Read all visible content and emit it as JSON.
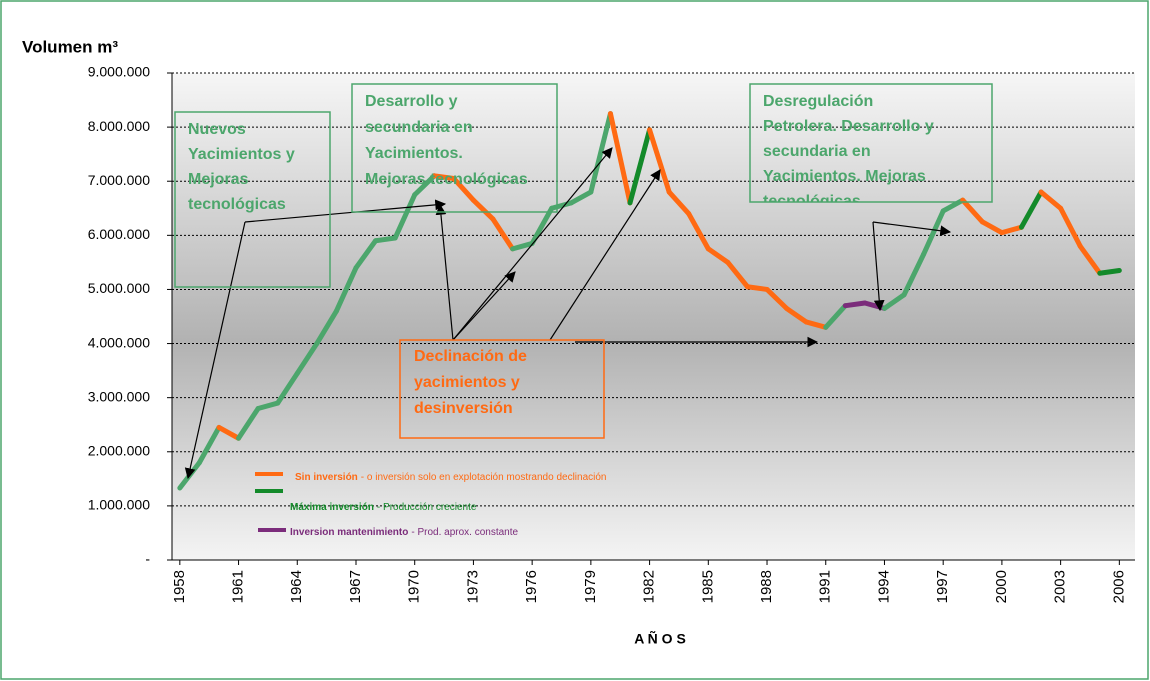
{
  "chart_data": {
    "type": "line",
    "y_label": "Volumen m³",
    "x_label": "A Ñ O S",
    "x": [
      1958,
      1959,
      1960,
      1961,
      1962,
      1963,
      1964,
      1965,
      1966,
      1967,
      1968,
      1969,
      1970,
      1971,
      1972,
      1973,
      1974,
      1975,
      1976,
      1977,
      1978,
      1979,
      1980,
      1981,
      1982,
      1983,
      1984,
      1985,
      1986,
      1987,
      1988,
      1989,
      1990,
      1991,
      1992,
      1993,
      1994,
      1995,
      1996,
      1997,
      1998,
      1999,
      2000,
      2001,
      2002,
      2003,
      2004,
      2005,
      2006
    ],
    "values": [
      1330000,
      1800000,
      2450000,
      2250000,
      2800000,
      2900000,
      3450000,
      4000000,
      4600000,
      5400000,
      5900000,
      5950000,
      6750000,
      7100000,
      7050000,
      6650000,
      6300000,
      5750000,
      5850000,
      6500000,
      6600000,
      6800000,
      8250000,
      6600000,
      7950000,
      6800000,
      6400000,
      5750000,
      5500000,
      5050000,
      5000000,
      4650000,
      4400000,
      4300000,
      4700000,
      4750000,
      4650000,
      4900000,
      5650000,
      6450000,
      6650000,
      6250000,
      6050000,
      6150000,
      6800000,
      6500000,
      5800000,
      5300000,
      5350000
    ],
    "segment_colors": [
      "#4ca66c",
      "#4ca66c",
      "#ff6a13",
      "#4ca66c",
      "#4ca66c",
      "#4ca66c",
      "#4ca66c",
      "#4ca66c",
      "#4ca66c",
      "#4ca66c",
      "#4ca66c",
      "#4ca66c",
      "#4ca66c",
      "#ff6a13",
      "#ff6a13",
      "#ff6a13",
      "#ff6a13",
      "#4ca66c",
      "#4ca66c",
      "#4ca66c",
      "#4ca66c",
      "#4ca66c",
      "#ff6a13",
      "#138a2a",
      "#ff6a13",
      "#ff6a13",
      "#ff6a13",
      "#ff6a13",
      "#ff6a13",
      "#ff6a13",
      "#ff6a13",
      "#ff6a13",
      "#ff6a13",
      "#4ca66c",
      "#7b2c7b",
      "#7b2c7b",
      "#4ca66c",
      "#4ca66c",
      "#4ca66c",
      "#4ca66c",
      "#ff6a13",
      "#ff6a13",
      "#ff6a13",
      "#138a2a",
      "#ff6a13",
      "#ff6a13",
      "#ff6a13",
      "#138a2a"
    ],
    "xlim": [
      1957.6,
      2006.8
    ],
    "xticks": [
      1958,
      1961,
      1964,
      1967,
      1970,
      1973,
      1976,
      1979,
      1982,
      1985,
      1988,
      1991,
      1994,
      1997,
      2000,
      2003,
      2006
    ],
    "ylim": [
      0,
      9000000
    ],
    "yticks": [
      {
        "value": 0,
        "label": "-"
      },
      {
        "value": 1000000,
        "label": "1.000.000"
      },
      {
        "value": 2000000,
        "label": "2.000.000"
      },
      {
        "value": 3000000,
        "label": "3.000.000"
      },
      {
        "value": 4000000,
        "label": "4.000.000"
      },
      {
        "value": 5000000,
        "label": "5.000.000"
      },
      {
        "value": 6000000,
        "label": "6.000.000"
      },
      {
        "value": 7000000,
        "label": "7.000.000"
      },
      {
        "value": 8000000,
        "label": "8.000.000"
      },
      {
        "value": 9000000,
        "label": "9.000.000"
      }
    ],
    "grid": true,
    "legend": [
      {
        "name": "Sin inversión",
        "description": "- o inversión solo en explotación mostrando declinación",
        "color": "#ff6a13"
      },
      {
        "name": "Máxima inversión",
        "description": "- Producción creciente",
        "color": "#138a2a"
      },
      {
        "name": "Inversion mantenimiento",
        "description": "- Prod. aprox. constante",
        "color": "#7b2c7b"
      }
    ],
    "annotations": [
      {
        "lines": [
          "Nuevos",
          "Yacimientos y",
          "Mejoras",
          "tecnológicas"
        ],
        "color": "#4ca66c"
      },
      {
        "lines": [
          "Desarrollo y",
          "secundaria en",
          "Yacimientos.",
          "Mejoras tecnológicas"
        ],
        "color": "#4ca66c"
      },
      {
        "lines": [
          "Desregulación",
          "Petrolera. Desarrollo y",
          "secundaria en",
          "Yacimientos.   Mejoras",
          "tecnológicas"
        ],
        "color": "#4ca66c"
      },
      {
        "lines": [
          "Declinación de",
          "yacimientos y",
          "desinversión"
        ],
        "color": "#ff6a13"
      }
    ]
  }
}
